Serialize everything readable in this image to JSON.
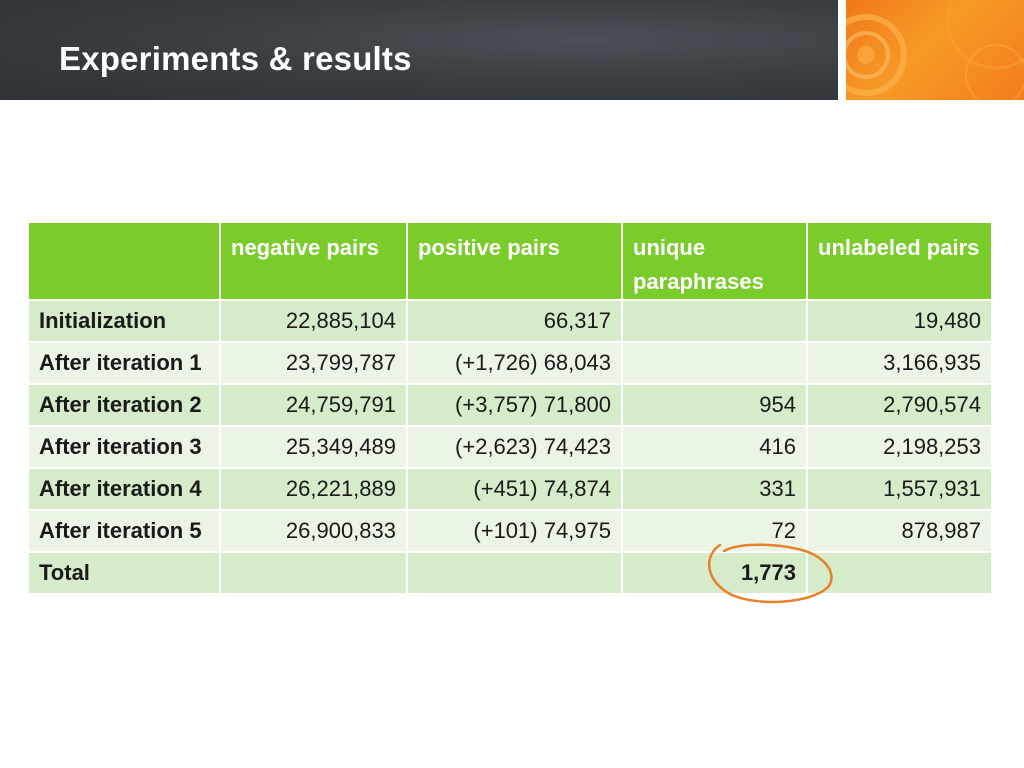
{
  "slide": {
    "title": "Experiments & results"
  },
  "table": {
    "headers": [
      "",
      "negative pairs",
      "positive pairs",
      "unique paraphrases",
      "unlabeled pairs"
    ],
    "rows": [
      {
        "label": "Initialization",
        "negative": "22,885,104",
        "positive": "66,317",
        "unique": "",
        "unlabeled": "19,480"
      },
      {
        "label": "After iteration 1",
        "negative": "23,799,787",
        "positive": "(+1,726) 68,043",
        "unique": "",
        "unlabeled": "3,166,935"
      },
      {
        "label": "After iteration 2",
        "negative": "24,759,791",
        "positive": "(+3,757) 71,800",
        "unique": "954",
        "unlabeled": "2,790,574"
      },
      {
        "label": "After iteration 3",
        "negative": "25,349,489",
        "positive": "(+2,623) 74,423",
        "unique": "416",
        "unlabeled": "2,198,253"
      },
      {
        "label": "After iteration 4",
        "negative": "26,221,889",
        "positive": "(+451) 74,874",
        "unique": "331",
        "unlabeled": "1,557,931"
      },
      {
        "label": "After iteration 5",
        "negative": "26,900,833",
        "positive": "(+101) 74,975",
        "unique": "72",
        "unlabeled": "878,987"
      },
      {
        "label": "Total",
        "negative": "",
        "positive": "",
        "unique": "1,773",
        "unlabeled": ""
      }
    ]
  },
  "colors": {
    "header_green": "#7acc2a",
    "row_dark": "#d5ebc9",
    "row_light": "#ebf5e6",
    "highlight_circle": "#e8802a",
    "accent_orange": "#f0781a"
  }
}
